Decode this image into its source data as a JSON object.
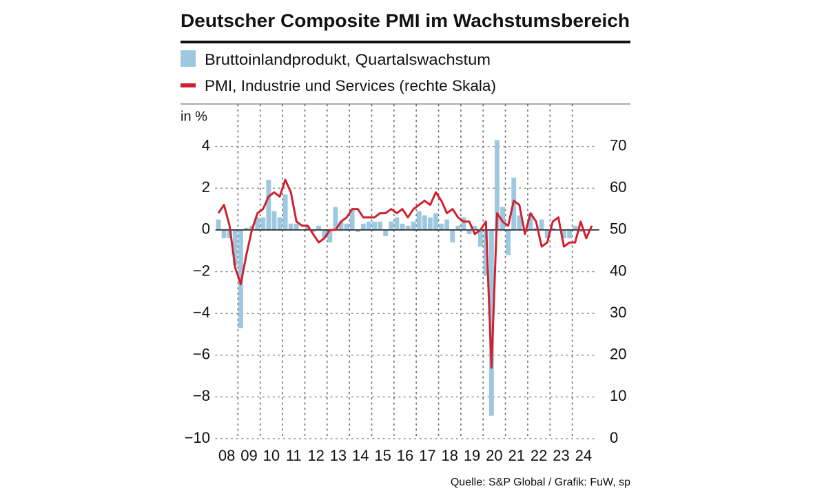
{
  "chart_data": {
    "type": "bar-line",
    "title": "Deutscher Composite PMI im Wachstumsbereich",
    "y_label": "in %",
    "source": "Quelle: S&P Global / Grafik: FuW, sp",
    "xlim": [
      2008,
      2025
    ],
    "xticks": [
      {
        "value": 2008.5,
        "label": "08"
      },
      {
        "value": 2009.5,
        "label": "09"
      },
      {
        "value": 2010.5,
        "label": "10"
      },
      {
        "value": 2011.5,
        "label": "11"
      },
      {
        "value": 2012.5,
        "label": "12"
      },
      {
        "value": 2013.5,
        "label": "13"
      },
      {
        "value": 2014.5,
        "label": "14"
      },
      {
        "value": 2015.5,
        "label": "15"
      },
      {
        "value": 2016.5,
        "label": "16"
      },
      {
        "value": 2017.5,
        "label": "17"
      },
      {
        "value": 2018.5,
        "label": "18"
      },
      {
        "value": 2019.5,
        "label": "19"
      },
      {
        "value": 2020.5,
        "label": "20"
      },
      {
        "value": 2021.5,
        "label": "21"
      },
      {
        "value": 2022.5,
        "label": "22"
      },
      {
        "value": 2023.5,
        "label": "23"
      },
      {
        "value": 2024.5,
        "label": "24"
      }
    ],
    "ylim": [
      -10,
      6
    ],
    "yticks": [
      4,
      2,
      0,
      {
        "value": -2,
        "label": "−2"
      },
      {
        "value": -4,
        "label": "−4"
      },
      {
        "value": -6,
        "label": "−6"
      },
      {
        "value": -8,
        "label": "−8"
      },
      {
        "value": -10,
        "label": "−10"
      }
    ],
    "y2lim": [
      0,
      80
    ],
    "y2ticks": [
      70,
      60,
      50,
      40,
      30,
      20,
      10,
      0
    ],
    "grid": true,
    "series": [
      {
        "name": "Bruttoinlandprodukt, Quartalswachstum",
        "kind": "bar",
        "color": "#9dc8e0",
        "x": [
          2008.125,
          2008.375,
          2008.625,
          2008.875,
          2009.125,
          2009.375,
          2009.625,
          2009.875,
          2010.125,
          2010.375,
          2010.625,
          2010.875,
          2011.125,
          2011.375,
          2011.625,
          2011.875,
          2012.125,
          2012.375,
          2012.625,
          2012.875,
          2013.125,
          2013.375,
          2013.625,
          2013.875,
          2014.125,
          2014.375,
          2014.625,
          2014.875,
          2015.125,
          2015.375,
          2015.625,
          2015.875,
          2016.125,
          2016.375,
          2016.625,
          2016.875,
          2017.125,
          2017.375,
          2017.625,
          2017.875,
          2018.125,
          2018.375,
          2018.625,
          2018.875,
          2019.125,
          2019.375,
          2019.625,
          2019.875,
          2020.125,
          2020.375,
          2020.625,
          2020.875,
          2021.125,
          2021.375,
          2021.625,
          2021.875,
          2022.125,
          2022.375,
          2022.625,
          2022.875,
          2023.125,
          2023.375,
          2023.625,
          2023.875,
          2024.125,
          2024.375
        ],
        "values": [
          0.5,
          -0.4,
          -0.4,
          -1.7,
          -4.7,
          0.1,
          0.2,
          0.6,
          0.6,
          2.4,
          0.9,
          0.6,
          1.7,
          0.3,
          0.3,
          0.0,
          0.2,
          -0.1,
          0.2,
          -0.4,
          -0.6,
          1.1,
          0.4,
          0.3,
          1.0,
          -0.1,
          0.3,
          0.4,
          0.4,
          0.4,
          -0.3,
          0.4,
          0.6,
          0.3,
          0.2,
          0.4,
          0.9,
          0.7,
          0.6,
          0.8,
          0.3,
          0.5,
          -0.6,
          0.2,
          0.6,
          -0.2,
          0.2,
          -0.8,
          -2.2,
          -8.9,
          4.3,
          1.1,
          -1.2,
          2.5,
          0.7,
          0.0,
          0.8,
          0.1,
          0.5,
          -0.4,
          0.1,
          0.0,
          -0.4,
          -0.4,
          0.2,
          -0.1
        ]
      },
      {
        "name": "PMI, Industrie und Services (rechte Skala)",
        "kind": "line",
        "axis": "y2",
        "color": "#d0202e",
        "x": [
          2008.125,
          2008.375,
          2008.625,
          2008.875,
          2009.125,
          2009.375,
          2009.625,
          2009.875,
          2010.125,
          2010.375,
          2010.625,
          2010.875,
          2011.125,
          2011.375,
          2011.625,
          2011.875,
          2012.125,
          2012.375,
          2012.625,
          2012.875,
          2013.125,
          2013.375,
          2013.625,
          2013.875,
          2014.125,
          2014.375,
          2014.625,
          2014.875,
          2015.125,
          2015.375,
          2015.625,
          2015.875,
          2016.125,
          2016.375,
          2016.625,
          2016.875,
          2017.125,
          2017.375,
          2017.625,
          2017.875,
          2018.125,
          2018.375,
          2018.625,
          2018.875,
          2019.125,
          2019.375,
          2019.625,
          2019.875,
          2020.125,
          2020.375,
          2020.625,
          2020.875,
          2021.125,
          2021.375,
          2021.625,
          2021.875,
          2022.125,
          2022.375,
          2022.625,
          2022.875,
          2023.125,
          2023.375,
          2023.625,
          2023.875,
          2024.125,
          2024.375,
          2024.625,
          2024.875
        ],
        "values": [
          54,
          56,
          51,
          41,
          37,
          44,
          50,
          54,
          55,
          58,
          59,
          58,
          62,
          59,
          52,
          51,
          51,
          49,
          47,
          48,
          50,
          50,
          52,
          53,
          55,
          55,
          53,
          53,
          53,
          54,
          54,
          55,
          54,
          55,
          53,
          55,
          56,
          57,
          56,
          59,
          57,
          54,
          55,
          53,
          52,
          52,
          49,
          50,
          52,
          17,
          54,
          52,
          51,
          57,
          56,
          49,
          54,
          52,
          46,
          47,
          52,
          53,
          46,
          47,
          47,
          52,
          48,
          51
        ]
      }
    ]
  }
}
